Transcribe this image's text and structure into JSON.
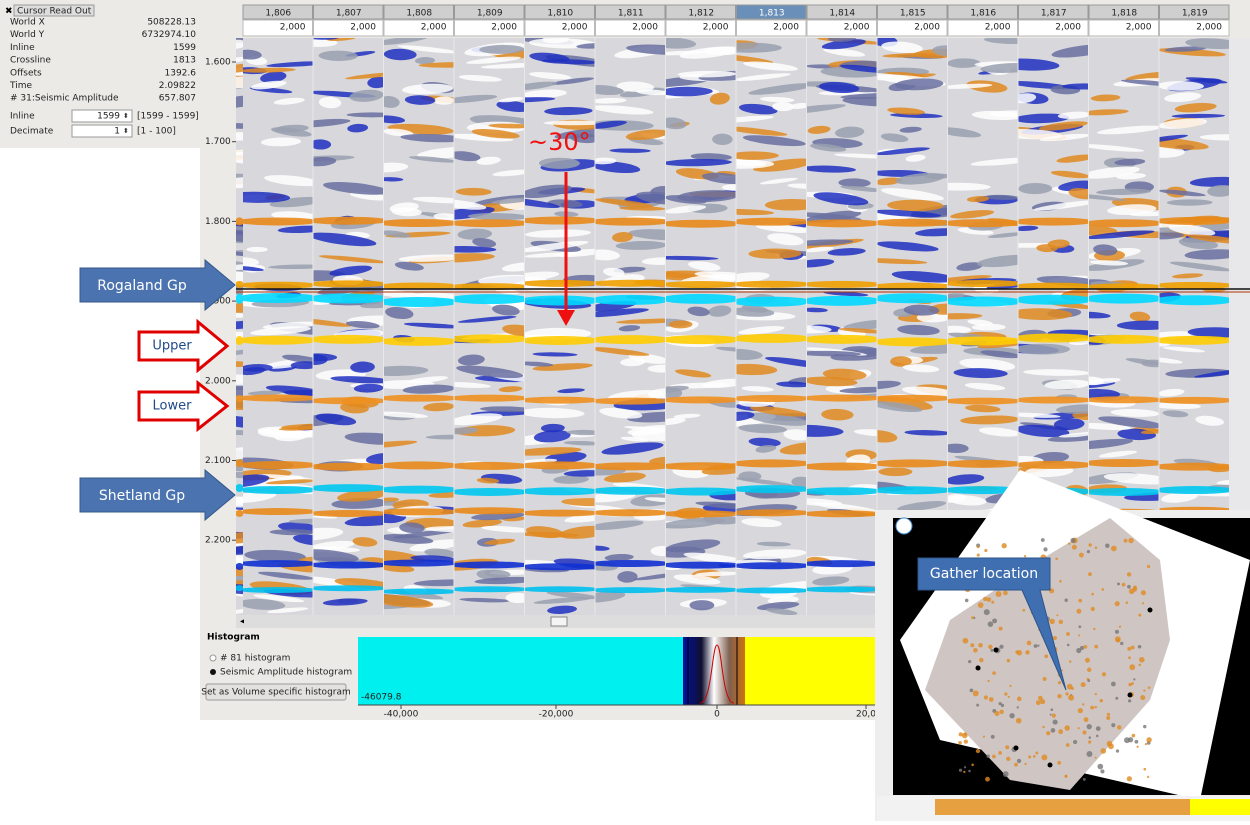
{
  "cursor_readout": {
    "title": "Cursor Read Out",
    "rows": [
      [
        "World X",
        "508228.13"
      ],
      [
        "World Y",
        "6732974.10"
      ],
      [
        "Inline",
        "1599"
      ],
      [
        "Crossline",
        "1813"
      ],
      [
        "Offsets",
        "1392.6"
      ],
      [
        "Time",
        "2.09822"
      ],
      [
        "# 31:Seismic Amplitude",
        "657.807"
      ]
    ]
  },
  "controls": [
    {
      "label": "Inline",
      "value": "1599",
      "range": "[1599 - 1599]"
    },
    {
      "label": "Decimate",
      "value": "1",
      "range": "[1 - 100]"
    }
  ],
  "gathers": {
    "crosslines": [
      "1,806",
      "1,807",
      "1,808",
      "1,809",
      "1,810",
      "1,811",
      "1,812",
      "1,813",
      "1,814",
      "1,815",
      "1,816",
      "1,817",
      "1,818",
      "1,819"
    ],
    "offsets": [
      "2,000",
      "2,000",
      "2,000",
      "2,000",
      "2,000",
      "2,000",
      "2,000",
      "2,000",
      "2,000",
      "2,000",
      "2,000",
      "2,000",
      "2,000",
      "2,000"
    ],
    "selected_index": 7
  },
  "time_axis": [
    "1.600",
    "1.700",
    "1.800",
    "1.900",
    "2.000",
    "2.100",
    "2.200"
  ],
  "annotations": {
    "rogaland": "Rogaland Gp",
    "upper": "Upper",
    "lower": "Lower",
    "shetland": "Shetland Gp",
    "dip": "~30°"
  },
  "histogram": {
    "title": "Histogram",
    "options": [
      "# 81 histogram",
      "Seismic Amplitude histogram"
    ],
    "button": "Set as Volume specific histogram",
    "min_label": "-46079.8",
    "axis_labels": [
      "-40,000",
      "-20,000",
      "0",
      "20,0"
    ]
  },
  "inset": {
    "callout": "Gather location"
  }
}
